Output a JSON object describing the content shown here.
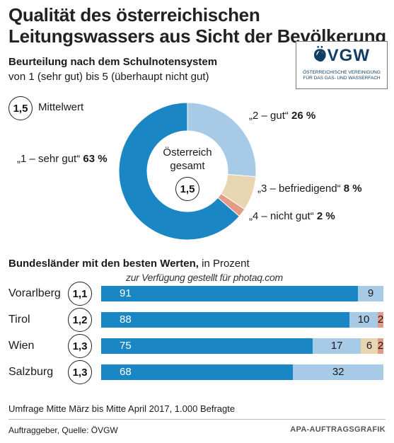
{
  "header": {
    "title": "Qualität des österreichischen Leitungswassers aus Sicht der Bevölkerung",
    "subtitle": "Beurteilung nach dem Schulnotensystem",
    "subtitle2": "von 1 (sehr gut) bis 5 (überhaupt nicht gut)"
  },
  "logo": {
    "word": "ÖVGW",
    "line1": "Österreichische Vereinigung",
    "line2": "für das Gas- und Wasserfach"
  },
  "mean": {
    "badge": "1,5",
    "label": "Mittelwert"
  },
  "center": {
    "line1": "Österreich",
    "line2": "gesamt",
    "badge": "1,5"
  },
  "section": {
    "title_bold": "Bundesländer mit den besten Werten,",
    "title_rest": " in Prozent"
  },
  "watermark": "zur Verfügung gestellt für photaq.com",
  "footer": {
    "survey": "Umfrage Mitte März bis Mitte April 2017, 1.000 Befragte",
    "source": "Auftraggeber, Quelle: ÖVGW",
    "credit": "APA-AUFTRAGSGRAFIK"
  },
  "colors": {
    "grade1": "#1a87c4",
    "grade2": "#a7cbe6",
    "grade3": "#e8d6b3",
    "grade4": "#e39a86",
    "logo": "#123e66"
  },
  "chart_data": [
    {
      "type": "pie",
      "variant": "donut",
      "categories": [
        "„1 – sehr gut“",
        "„2 – gut“",
        "„3 – befriedigend“",
        "„4 – nicht gut“"
      ],
      "values": [
        63,
        26,
        8,
        2
      ],
      "value_labels": [
        "63 %",
        "26 %",
        "8 %",
        "2 %"
      ],
      "center_value": "1,5"
    },
    {
      "type": "bar",
      "orientation": "horizontal",
      "stacked": true,
      "categories": [
        "Vorarlberg",
        "Tirol",
        "Wien",
        "Salzburg"
      ],
      "means": [
        "1,1",
        "1,2",
        "1,3",
        "1,3"
      ],
      "series": [
        {
          "values": [
            91,
            88,
            75,
            68
          ]
        },
        {
          "values": [
            9,
            10,
            17,
            32
          ]
        },
        {
          "values": [
            0,
            0,
            6,
            0
          ]
        },
        {
          "values": [
            0,
            2,
            2,
            0
          ]
        }
      ],
      "xlim": [
        0,
        100
      ]
    }
  ]
}
